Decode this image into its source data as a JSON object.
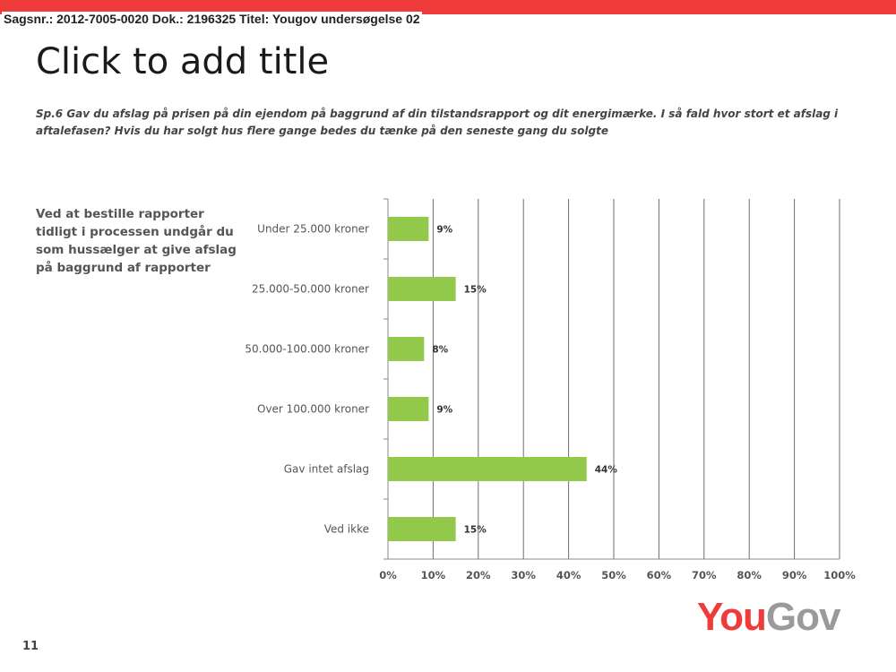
{
  "header": {
    "doc_reference": "Sagsnr.: 2012-7005-0020 Dok.: 2196325 Titel: Yougov undersøgelse 02"
  },
  "slide": {
    "title": "Click to add title",
    "question": "Sp.6 Gav du afslag på prisen på din ejendom på baggrund af din tilstandsrapport og dit energimærke. I så fald hvor stort et afslag i aftalefasen? Hvis du har solgt hus flere gange bedes du tænke på den seneste gang du solgte",
    "side_text": "Ved at bestille rapporter tidligt i processen undgår du som hussælger at give afslag på baggrund af rapporter",
    "page_number": "11"
  },
  "logo": {
    "part1": "You",
    "part2": "Gov"
  },
  "colors": {
    "accent_red": "#ef3b39",
    "bar_green": "#92c94a",
    "logo_gray": "#9a9a9a"
  },
  "chart_data": {
    "type": "bar",
    "orientation": "horizontal",
    "categories": [
      "Under 25.000 kroner",
      "25.000-50.000 kroner",
      "50.000-100.000 kroner",
      "Over 100.000 kroner",
      "Gav intet afslag",
      "Ved ikke"
    ],
    "values": [
      9,
      15,
      8,
      9,
      44,
      15
    ],
    "value_labels": [
      "9%",
      "15%",
      "8%",
      "9%",
      "44%",
      "15%"
    ],
    "xlim": [
      0,
      100
    ],
    "xticks": [
      "0%",
      "10%",
      "20%",
      "30%",
      "40%",
      "50%",
      "60%",
      "70%",
      "80%",
      "90%",
      "100%"
    ],
    "grid": true,
    "title": "",
    "xlabel": "",
    "ylabel": ""
  }
}
